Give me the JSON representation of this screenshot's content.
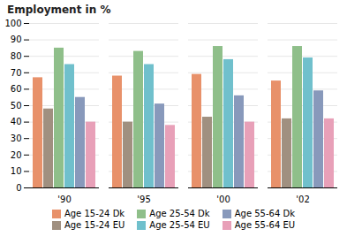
{
  "chart_data": {
    "type": "bar",
    "title": "Employment in %",
    "categories": [
      "'90",
      "'95",
      "'00",
      "'02"
    ],
    "series": [
      {
        "name": "Age 15-24 Dk",
        "color": "#E8916A",
        "values": [
          67,
          68,
          69,
          65
        ]
      },
      {
        "name": "Age 15-24 EU",
        "color": "#A09080",
        "values": [
          48,
          40,
          43,
          42
        ]
      },
      {
        "name": "Age 25-54 Dk",
        "color": "#8FBF8A",
        "values": [
          85,
          83,
          86,
          86
        ]
      },
      {
        "name": "Age 25-54 EU",
        "color": "#70C0CC",
        "values": [
          75,
          75,
          78,
          79
        ]
      },
      {
        "name": "Age 55-64 Dk",
        "color": "#8899BB",
        "values": [
          55,
          51,
          56,
          59
        ]
      },
      {
        "name": "Age 55-64 EU",
        "color": "#E8A0B8",
        "values": [
          40,
          38,
          40,
          42
        ]
      }
    ],
    "ylim": [
      0,
      100
    ],
    "yticks": [
      0,
      10,
      20,
      30,
      40,
      50,
      60,
      70,
      80,
      90,
      100
    ],
    "grid": true,
    "legend": "bottom"
  }
}
